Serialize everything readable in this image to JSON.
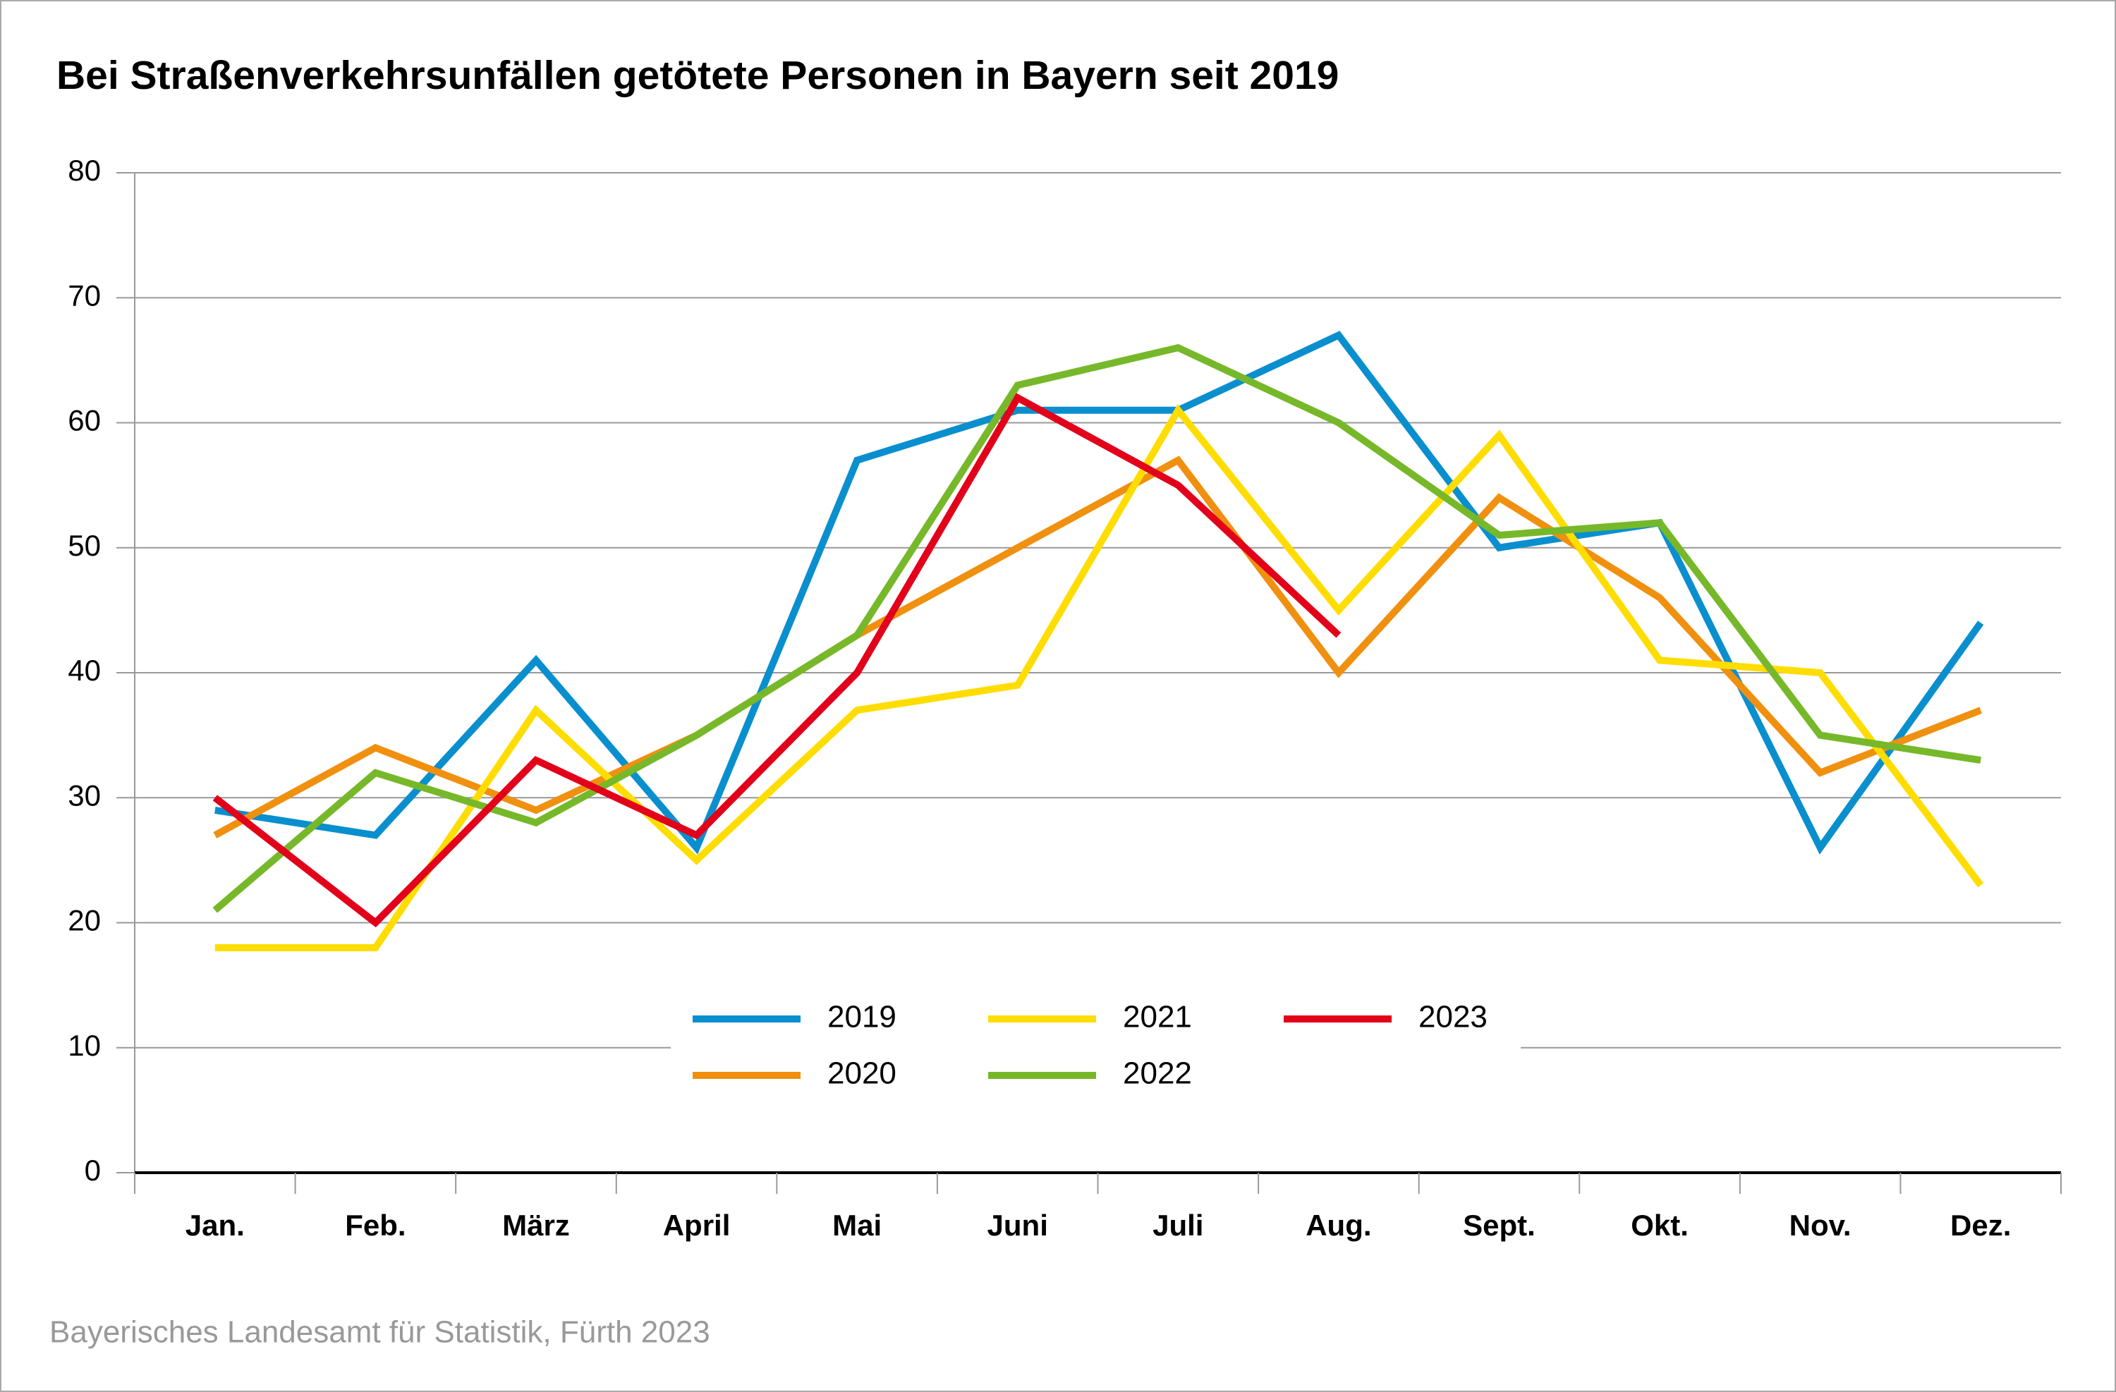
{
  "chart_data": {
    "type": "line",
    "title": "Bei Straßenverkehrsunfällen getötete Personen in Bayern seit 2019",
    "source": "Bayerisches Landesamt für Statistik, Fürth 2023",
    "categories": [
      "Jan.",
      "Feb.",
      "März",
      "April",
      "Mai",
      "Juni",
      "Juli",
      "Aug.",
      "Sept.",
      "Okt.",
      "Nov.",
      "Dez."
    ],
    "series": [
      {
        "name": "2019",
        "color": "#0a8fce",
        "values": [
          29,
          27,
          41,
          26,
          57,
          61,
          61,
          67,
          50,
          52,
          26,
          44
        ]
      },
      {
        "name": "2020",
        "color": "#f0900f",
        "values": [
          27,
          34,
          29,
          35,
          43,
          50,
          57,
          40,
          54,
          46,
          32,
          37
        ]
      },
      {
        "name": "2021",
        "color": "#ffdd00",
        "values": [
          18,
          18,
          37,
          25,
          37,
          39,
          61,
          45,
          59,
          41,
          40,
          23
        ]
      },
      {
        "name": "2022",
        "color": "#77b82a",
        "values": [
          21,
          32,
          28,
          35,
          43,
          63,
          66,
          60,
          51,
          52,
          35,
          33
        ]
      },
      {
        "name": "2023",
        "color": "#e2001a",
        "values": [
          30,
          20,
          33,
          27,
          40,
          62,
          55,
          43,
          null,
          null,
          null,
          null
        ]
      }
    ],
    "ylim": [
      0,
      80
    ],
    "yticks": [
      0,
      10,
      20,
      30,
      40,
      50,
      60,
      70,
      80
    ],
    "grid": true
  }
}
